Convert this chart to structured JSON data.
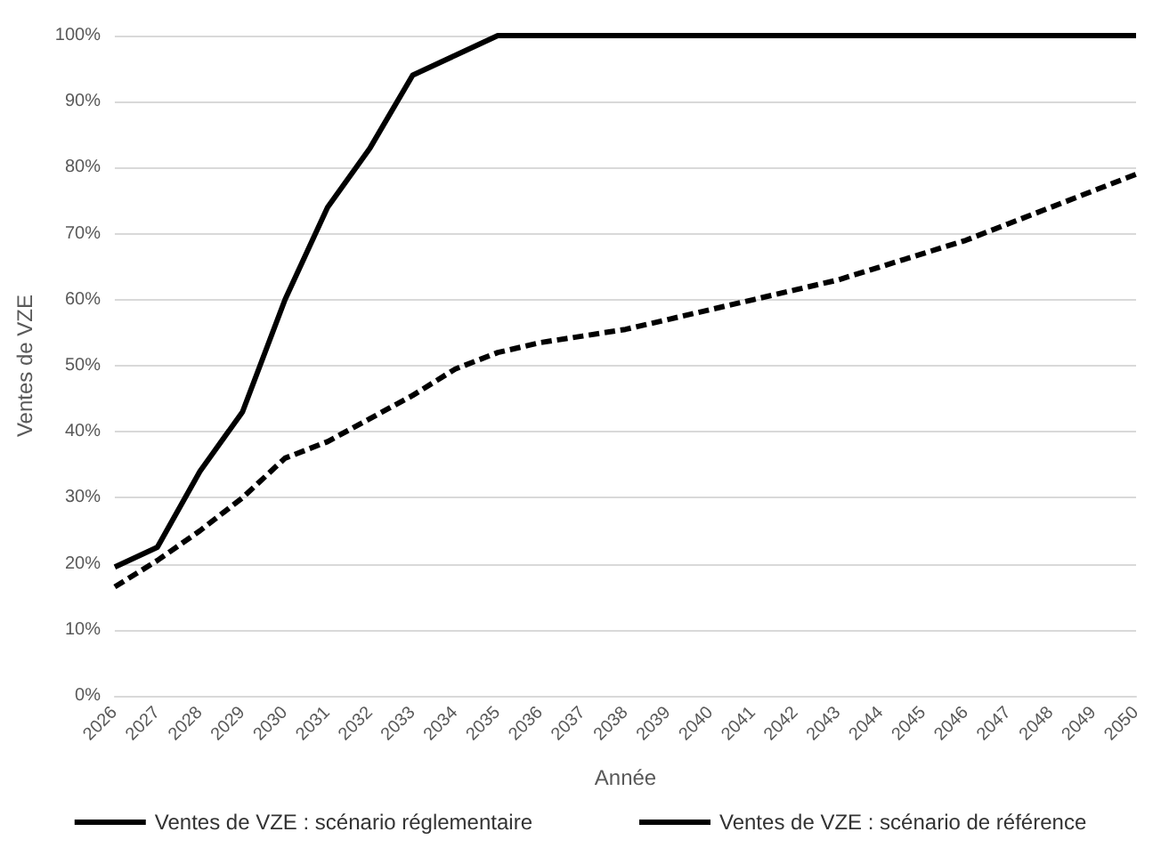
{
  "chart_data": {
    "type": "line",
    "xlabel": "Année",
    "ylabel": "Ventes de VZE",
    "categories": [
      "2026",
      "2027",
      "2028",
      "2029",
      "2030",
      "2031",
      "2032",
      "2033",
      "2034",
      "2035",
      "2036",
      "2037",
      "2038",
      "2039",
      "2040",
      "2041",
      "2042",
      "2043",
      "2044",
      "2045",
      "2046",
      "2047",
      "2048",
      "2049",
      "2050"
    ],
    "series": [
      {
        "name": "Ventes de VZE : scénario réglementaire",
        "color": "#000000",
        "line_style": "solid",
        "values": [
          19.5,
          22.5,
          34,
          43,
          60,
          74,
          83,
          94,
          97,
          100,
          100,
          100,
          100,
          100,
          100,
          100,
          100,
          100,
          100,
          100,
          100,
          100,
          100,
          100,
          100
        ]
      },
      {
        "name": "Ventes de VZE : scénario de référence",
        "color": "#000000",
        "line_style": "dashed",
        "values": [
          16.5,
          20.5,
          25,
          30,
          36,
          38.5,
          42,
          45.5,
          49.5,
          52,
          53.5,
          54.5,
          55.5,
          57,
          58.5,
          60,
          61.5,
          63,
          65,
          67,
          69,
          71.5,
          74,
          76.5,
          79
        ]
      }
    ],
    "ylim": [
      0,
      100
    ],
    "yticks": [
      {
        "value": 0,
        "label": "0%"
      },
      {
        "value": 10,
        "label": "10%"
      },
      {
        "value": 20,
        "label": "20%"
      },
      {
        "value": 30,
        "label": "30%"
      },
      {
        "value": 40,
        "label": "40%"
      },
      {
        "value": 50,
        "label": "50%"
      },
      {
        "value": 60,
        "label": "60%"
      },
      {
        "value": 70,
        "label": "70%"
      },
      {
        "value": 80,
        "label": "80%"
      },
      {
        "value": 90,
        "label": "90%"
      },
      {
        "value": 100,
        "label": "100%"
      }
    ],
    "grid": "y",
    "legend": "bottom",
    "marker": "none"
  }
}
